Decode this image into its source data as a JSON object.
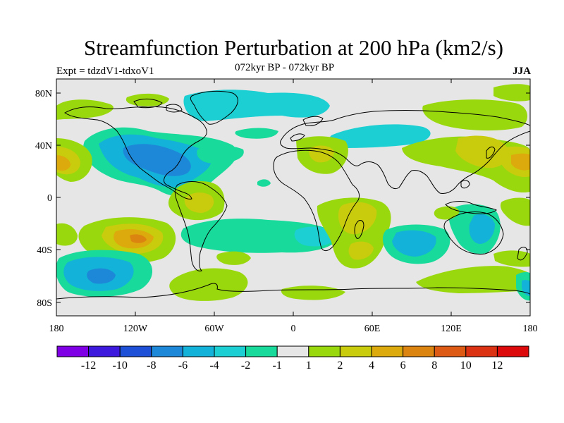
{
  "title": "Streamfunction Perturbation at 200 hPa (km2/s)",
  "subtitle_left": "Expt = tdzdV1-tdxoV1",
  "subtitle_center": "072kyr BP - 072kyr BP",
  "subtitle_right": "JJA",
  "map": {
    "lat_ticks": [
      "80N",
      "40N",
      "0",
      "40S",
      "80S"
    ],
    "lon_ticks": [
      "180",
      "120W",
      "60W",
      "0",
      "60E",
      "120E",
      "180"
    ],
    "background_color": "#e6e6e6"
  },
  "colorbar": {
    "labels": [
      "-12",
      "-10",
      "-8",
      "-6",
      "-4",
      "-2",
      "-1",
      "1",
      "2",
      "4",
      "6",
      "8",
      "10",
      "12"
    ],
    "colors": [
      "#7f00e5",
      "#3c19dc",
      "#1e4fd7",
      "#1e88d8",
      "#13b2d8",
      "#1ccfd2",
      "#18da9a",
      "#e6e6e6",
      "#9ad80e",
      "#c8cc0c",
      "#dcaa0c",
      "#dc8410",
      "#dc5a14",
      "#dc3214",
      "#dc0a0a"
    ]
  }
}
